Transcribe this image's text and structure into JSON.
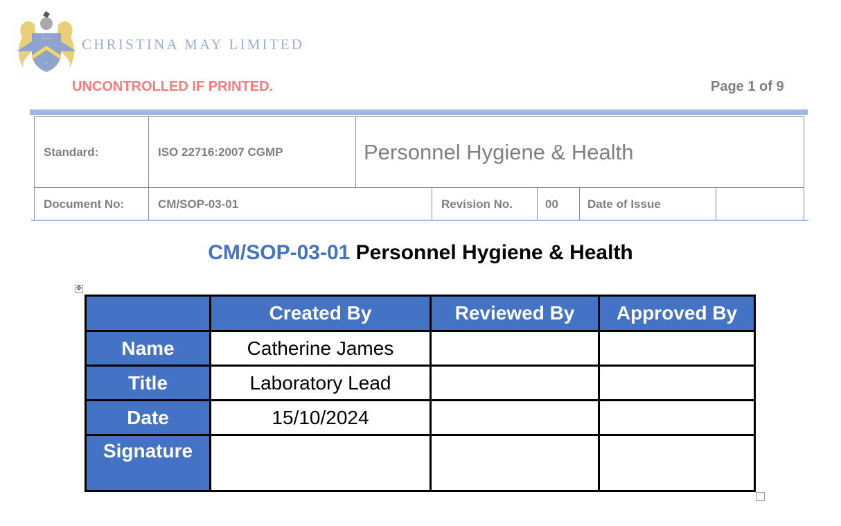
{
  "header": {
    "company_name": "CHRISTINA MAY LIMITED",
    "logo": "coat-of-arms",
    "notice": "UNCONTROLLED IF PRINTED.",
    "page_info": "Page 1 of 9",
    "standard_label": "Standard:",
    "standard_value": "ISO 22716:2007 CGMP",
    "title": "Personnel Hygiene & Health",
    "docno_label": "Document No:",
    "docno_value": "CM/SOP-03-01",
    "revision_label": "Revision No.",
    "revision_value": "00",
    "date_label": "Date of Issue",
    "date_value": ""
  },
  "document": {
    "code": "CM/SOP-03-01",
    "title": " Personnel Hygiene & Health"
  },
  "approval_table": {
    "columns": [
      "",
      "Created By",
      "Reviewed By",
      "Approved By"
    ],
    "rows": [
      {
        "label": "Name",
        "created": "Catherine James",
        "reviewed": "",
        "approved": ""
      },
      {
        "label": "Title",
        "created": "Laboratory Lead",
        "reviewed": "",
        "approved": ""
      },
      {
        "label": "Date",
        "created": "15/10/2024",
        "reviewed": "",
        "approved": ""
      },
      {
        "label": "Signature",
        "created": "",
        "reviewed": "",
        "approved": ""
      }
    ]
  },
  "colors": {
    "accent": "#4472C4",
    "notice": "#FF7A7A",
    "rule": "#A0B8E0"
  }
}
